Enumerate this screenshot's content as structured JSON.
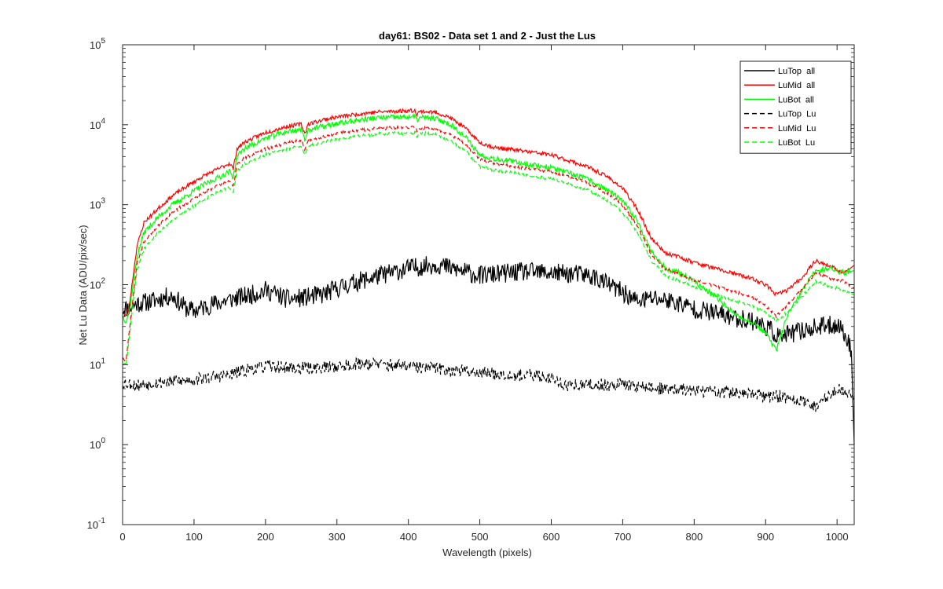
{
  "chart_data": {
    "type": "line",
    "title": "day61: BS02 - Data set 1 and 2 - Just the Lus",
    "xlabel": "Wavelength (pixels)",
    "ylabel": "Net Lu Data (ADU/pix/sec)",
    "xlim": [
      0,
      1024
    ],
    "ylim": [
      0.1,
      100000
    ],
    "yscale": "log",
    "grid": false,
    "legend_position": "top-right",
    "x_ticks": [
      {
        "value": 0,
        "label": "0"
      },
      {
        "value": 100,
        "label": "100"
      },
      {
        "value": 200,
        "label": "200"
      },
      {
        "value": 300,
        "label": "300"
      },
      {
        "value": 400,
        "label": "400"
      },
      {
        "value": 500,
        "label": "500"
      },
      {
        "value": 600,
        "label": "600"
      },
      {
        "value": 700,
        "label": "700"
      },
      {
        "value": 800,
        "label": "800"
      },
      {
        "value": 900,
        "label": "900"
      },
      {
        "value": 1000,
        "label": "1000"
      }
    ],
    "y_ticks": [
      {
        "value": 0.1,
        "base": "10",
        "exp": "-1"
      },
      {
        "value": 1,
        "base": "10",
        "exp": "0"
      },
      {
        "value": 10,
        "base": "10",
        "exp": "1"
      },
      {
        "value": 100,
        "base": "10",
        "exp": "2"
      },
      {
        "value": 1000,
        "base": "10",
        "exp": "3"
      },
      {
        "value": 10000,
        "base": "10",
        "exp": "4"
      },
      {
        "value": 100000,
        "base": "10",
        "exp": "5"
      }
    ],
    "series": [
      {
        "name": "LuTop  all",
        "color": "#000000",
        "dash": "solid",
        "noise": 0.12,
        "seed": 11,
        "x": [
          0,
          10,
          20,
          40,
          60,
          70,
          90,
          100,
          120,
          150,
          180,
          200,
          210,
          230,
          250,
          280,
          300,
          330,
          360,
          400,
          420,
          440,
          460,
          500,
          540,
          560,
          600,
          640,
          660,
          700,
          720,
          740,
          760,
          780,
          800,
          820,
          840,
          860,
          880,
          900,
          920,
          940,
          960,
          980,
          1000,
          1010,
          1020,
          1024
        ],
        "y": [
          50,
          52,
          58,
          62,
          70,
          72,
          50,
          47,
          55,
          65,
          75,
          85,
          80,
          66,
          68,
          75,
          90,
          110,
          130,
          160,
          170,
          180,
          160,
          130,
          140,
          145,
          140,
          135,
          125,
          80,
          62,
          68,
          65,
          58,
          50,
          46,
          42,
          38,
          36,
          30,
          22,
          25,
          28,
          30,
          32,
          25,
          15,
          1
        ]
      },
      {
        "name": "LuMid  all",
        "color": "#ff0000",
        "dash": "solid",
        "noise": 0.025,
        "seed": 23,
        "x": [
          0,
          5,
          10,
          20,
          30,
          50,
          70,
          90,
          110,
          130,
          150,
          155,
          160,
          170,
          200,
          230,
          250,
          255,
          260,
          280,
          300,
          340,
          360,
          400,
          410,
          412,
          415,
          420,
          440,
          460,
          480,
          500,
          520,
          560,
          600,
          650,
          680,
          700,
          720,
          740,
          760,
          780,
          800,
          840,
          880,
          900,
          915,
          930,
          950,
          970,
          990,
          1010,
          1024
        ],
        "y": [
          45,
          40,
          60,
          300,
          600,
          900,
          1300,
          1700,
          2200,
          2700,
          3300,
          2800,
          5000,
          6000,
          8000,
          9500,
          10200,
          7800,
          10200,
          11500,
          12500,
          14000,
          14500,
          15000,
          15000,
          13500,
          14500,
          14700,
          14200,
          12000,
          9000,
          6000,
          5200,
          4700,
          4200,
          3000,
          2200,
          1600,
          900,
          380,
          250,
          220,
          190,
          150,
          120,
          100,
          75,
          85,
          120,
          200,
          170,
          140,
          175
        ]
      },
      {
        "name": "LuBot  all",
        "color": "#00ff00",
        "dash": "solid",
        "noise": 0.035,
        "seed": 37,
        "x": [
          0,
          5,
          10,
          20,
          30,
          50,
          70,
          90,
          110,
          130,
          150,
          155,
          160,
          170,
          200,
          230,
          250,
          255,
          260,
          280,
          300,
          340,
          360,
          400,
          410,
          412,
          415,
          420,
          440,
          460,
          480,
          500,
          520,
          560,
          600,
          650,
          680,
          700,
          720,
          740,
          760,
          780,
          800,
          840,
          860,
          880,
          900,
          915,
          930,
          950,
          970,
          990,
          1010,
          1024
        ],
        "y": [
          40,
          35,
          50,
          220,
          450,
          700,
          1000,
          1300,
          1700,
          2100,
          2600,
          2200,
          4000,
          5000,
          6800,
          8200,
          8700,
          6700,
          8700,
          9500,
          10300,
          11800,
          12200,
          12500,
          12500,
          11300,
          12100,
          12300,
          11800,
          10000,
          7000,
          4200,
          3800,
          3300,
          2900,
          2100,
          1500,
          1100,
          650,
          260,
          160,
          140,
          110,
          60,
          40,
          35,
          25,
          15,
          40,
          80,
          150,
          160,
          140,
          150
        ]
      },
      {
        "name": "LuTop  Lu",
        "color": "#000000",
        "dash": "dashed",
        "noise": 0.08,
        "seed": 53,
        "x": [
          0,
          20,
          50,
          100,
          150,
          180,
          200,
          250,
          300,
          340,
          360,
          400,
          440,
          500,
          550,
          600,
          620,
          650,
          700,
          750,
          800,
          850,
          900,
          920,
          950,
          970,
          1000,
          1020,
          1024
        ],
        "y": [
          6,
          5.5,
          6,
          6.5,
          7.5,
          9,
          9.5,
          9,
          9.5,
          10.5,
          10,
          9.5,
          9,
          8,
          7.5,
          7,
          5.5,
          5.5,
          5.7,
          5,
          4.8,
          4.5,
          4,
          4,
          3.5,
          3,
          5,
          4.5,
          3.5
        ]
      },
      {
        "name": "LuMid  Lu",
        "color": "#ff0000",
        "dash": "dashed",
        "noise": 0.02,
        "seed": 71,
        "x": [
          0,
          5,
          10,
          20,
          30,
          50,
          70,
          90,
          110,
          130,
          150,
          155,
          160,
          170,
          200,
          230,
          250,
          255,
          260,
          280,
          300,
          340,
          360,
          400,
          410,
          412,
          415,
          420,
          440,
          460,
          480,
          500,
          520,
          560,
          600,
          650,
          680,
          700,
          720,
          740,
          760,
          780,
          800,
          840,
          880,
          900,
          915,
          930,
          950,
          970,
          990,
          1010,
          1024
        ],
        "y": [
          12,
          11,
          30,
          180,
          350,
          550,
          800,
          1050,
          1350,
          1700,
          2000,
          1700,
          3100,
          3800,
          5000,
          5900,
          6400,
          4900,
          6400,
          7100,
          7800,
          8700,
          9000,
          9300,
          9300,
          8400,
          9000,
          9100,
          8800,
          7500,
          5600,
          3700,
          3300,
          2900,
          2600,
          1900,
          1350,
          980,
          560,
          240,
          155,
          135,
          115,
          90,
          70,
          55,
          40,
          55,
          85,
          140,
          120,
          110,
          90
        ]
      },
      {
        "name": "LuBot  Lu",
        "color": "#00ff00",
        "dash": "dashed",
        "noise": 0.02,
        "seed": 89,
        "x": [
          0,
          5,
          10,
          20,
          30,
          50,
          70,
          90,
          110,
          130,
          150,
          155,
          160,
          170,
          200,
          230,
          250,
          255,
          260,
          280,
          300,
          340,
          360,
          400,
          410,
          412,
          415,
          420,
          440,
          460,
          480,
          500,
          520,
          560,
          600,
          650,
          680,
          700,
          720,
          740,
          760,
          780,
          800,
          840,
          880,
          900,
          915,
          930,
          950,
          970,
          990,
          1010,
          1024
        ],
        "y": [
          10,
          10,
          25,
          150,
          280,
          450,
          650,
          850,
          1100,
          1400,
          1650,
          1400,
          2600,
          3200,
          4200,
          5000,
          5400,
          4100,
          5400,
          6000,
          6600,
          7400,
          7700,
          7900,
          7900,
          7200,
          7700,
          7800,
          7500,
          6300,
          4700,
          3000,
          2700,
          2400,
          2100,
          1550,
          1100,
          800,
          460,
          200,
          130,
          110,
          95,
          70,
          55,
          45,
          35,
          45,
          70,
          110,
          95,
          85,
          75
        ]
      }
    ]
  }
}
